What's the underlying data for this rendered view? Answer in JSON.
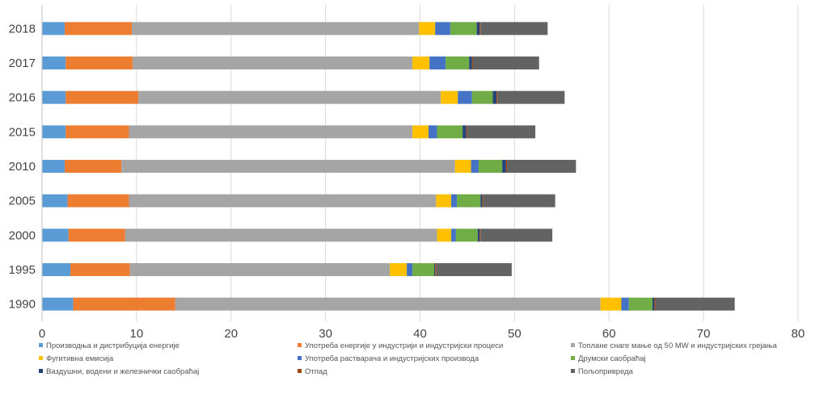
{
  "chart_data": {
    "type": "bar",
    "orientation": "horizontal",
    "stacked": true,
    "categories": [
      "1990",
      "1995",
      "2000",
      "2005",
      "2010",
      "2015",
      "2016",
      "2017",
      "2018"
    ],
    "xlim": [
      0,
      80
    ],
    "x_ticks": [
      0,
      10,
      20,
      30,
      40,
      50,
      60,
      70,
      80
    ],
    "grid": "vertical",
    "legend_position": "bottom",
    "series": [
      {
        "name": "Производња и дистрибуција енергије",
        "color": "#5b9bd5",
        "values": [
          3.3,
          3.0,
          2.8,
          2.7,
          2.4,
          2.5,
          2.5,
          2.5,
          2.4
        ]
      },
      {
        "name": "Употреба енергије у индустрији и индустријски процеси",
        "color": "#ed7d31",
        "values": [
          10.8,
          6.3,
          6.0,
          6.5,
          6.0,
          6.7,
          7.7,
          7.1,
          7.1
        ]
      },
      {
        "name": "Топлане снаге мање од 50 MW и индустријских грејања",
        "color": "#a5a5a5",
        "values": [
          45.0,
          27.5,
          33.0,
          32.5,
          35.3,
          30.0,
          32.0,
          29.6,
          30.4
        ]
      },
      {
        "name": "Фугитивна емисија",
        "color": "#ffc000",
        "values": [
          2.2,
          1.8,
          1.5,
          1.6,
          1.7,
          1.7,
          1.8,
          1.8,
          1.7
        ]
      },
      {
        "name": "Употреба растварача и индустријских производа",
        "color": "#4472c4",
        "values": [
          0.8,
          0.6,
          0.5,
          0.6,
          0.8,
          0.9,
          1.5,
          1.7,
          1.6
        ]
      },
      {
        "name": "Друмски саобраћај",
        "color": "#70ad47",
        "values": [
          2.5,
          2.3,
          2.3,
          2.5,
          2.5,
          2.7,
          2.2,
          2.5,
          2.8
        ]
      },
      {
        "name": "Ваздушни, водени и железнички саобраћај",
        "color": "#264478",
        "values": [
          0.2,
          0.1,
          0.2,
          0.2,
          0.4,
          0.4,
          0.4,
          0.3,
          0.3
        ]
      },
      {
        "name": "Отпад",
        "color": "#9e480e",
        "values": [
          0.1,
          0.1,
          0.1,
          0.1,
          0.1,
          0.1,
          0.1,
          0.1,
          0.1
        ]
      },
      {
        "name": "Пољопривреда",
        "color": "#636363",
        "values": [
          8.4,
          8.0,
          7.6,
          7.6,
          7.3,
          7.2,
          7.1,
          7.0,
          7.1
        ]
      }
    ]
  }
}
